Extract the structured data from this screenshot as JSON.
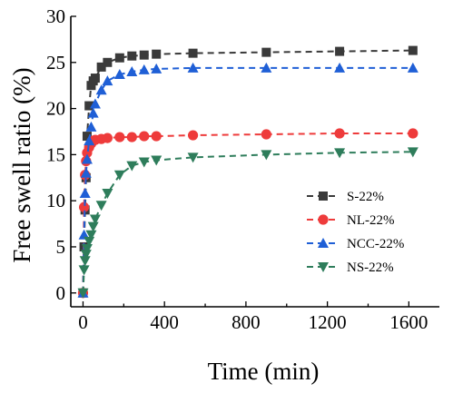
{
  "chart_data": {
    "type": "line",
    "title": "",
    "xlabel": "Time (min)",
    "ylabel": "Free swell ratio (%)",
    "xlim": [
      -60,
      1750
    ],
    "ylim": [
      -1.5,
      30
    ],
    "x_ticks": [
      0,
      400,
      800,
      1200,
      1600
    ],
    "y_ticks": [
      0,
      5,
      10,
      15,
      20,
      25,
      30
    ],
    "grid": false,
    "legend_position": "center-right",
    "series": [
      {
        "name": "S-22%",
        "color": "#3a3a3a",
        "marker": "square",
        "x": [
          0,
          5,
          10,
          15,
          20,
          30,
          40,
          50,
          60,
          90,
          120,
          180,
          240,
          300,
          360,
          540,
          900,
          1260,
          1620
        ],
        "y": [
          0,
          5.0,
          9.0,
          12.5,
          17.0,
          20.3,
          22.5,
          23.0,
          23.3,
          24.5,
          25.0,
          25.5,
          25.7,
          25.8,
          25.9,
          26.0,
          26.1,
          26.2,
          26.3
        ]
      },
      {
        "name": "NL-22%",
        "color": "#ee3b3b",
        "marker": "circle",
        "x": [
          0,
          5,
          10,
          15,
          20,
          30,
          40,
          50,
          60,
          90,
          120,
          180,
          240,
          300,
          360,
          540,
          900,
          1260,
          1620
        ],
        "y": [
          0,
          9.3,
          12.8,
          14.3,
          15.2,
          15.8,
          16.2,
          16.5,
          16.6,
          16.7,
          16.8,
          16.9,
          16.9,
          17.0,
          17.0,
          17.1,
          17.2,
          17.3,
          17.3
        ]
      },
      {
        "name": "NCC-22%",
        "color": "#1f5fd6",
        "marker": "triangle-up",
        "x": [
          0,
          5,
          10,
          15,
          20,
          30,
          40,
          50,
          60,
          90,
          120,
          180,
          240,
          300,
          360,
          540,
          900,
          1260,
          1620
        ],
        "y": [
          0,
          6.3,
          10.8,
          13.0,
          14.5,
          16.5,
          18.0,
          19.5,
          20.5,
          22.0,
          23.0,
          23.7,
          24.0,
          24.2,
          24.3,
          24.4,
          24.4,
          24.4,
          24.4
        ]
      },
      {
        "name": "NS-22%",
        "color": "#2e7d5b",
        "marker": "triangle-down",
        "x": [
          0,
          5,
          10,
          15,
          20,
          30,
          40,
          50,
          60,
          90,
          120,
          180,
          240,
          300,
          360,
          540,
          900,
          1260,
          1620
        ],
        "y": [
          0,
          2.5,
          3.5,
          4.2,
          4.8,
          5.6,
          6.3,
          7.2,
          8.0,
          9.5,
          10.8,
          12.8,
          13.8,
          14.2,
          14.4,
          14.7,
          15.0,
          15.2,
          15.3
        ]
      }
    ]
  }
}
